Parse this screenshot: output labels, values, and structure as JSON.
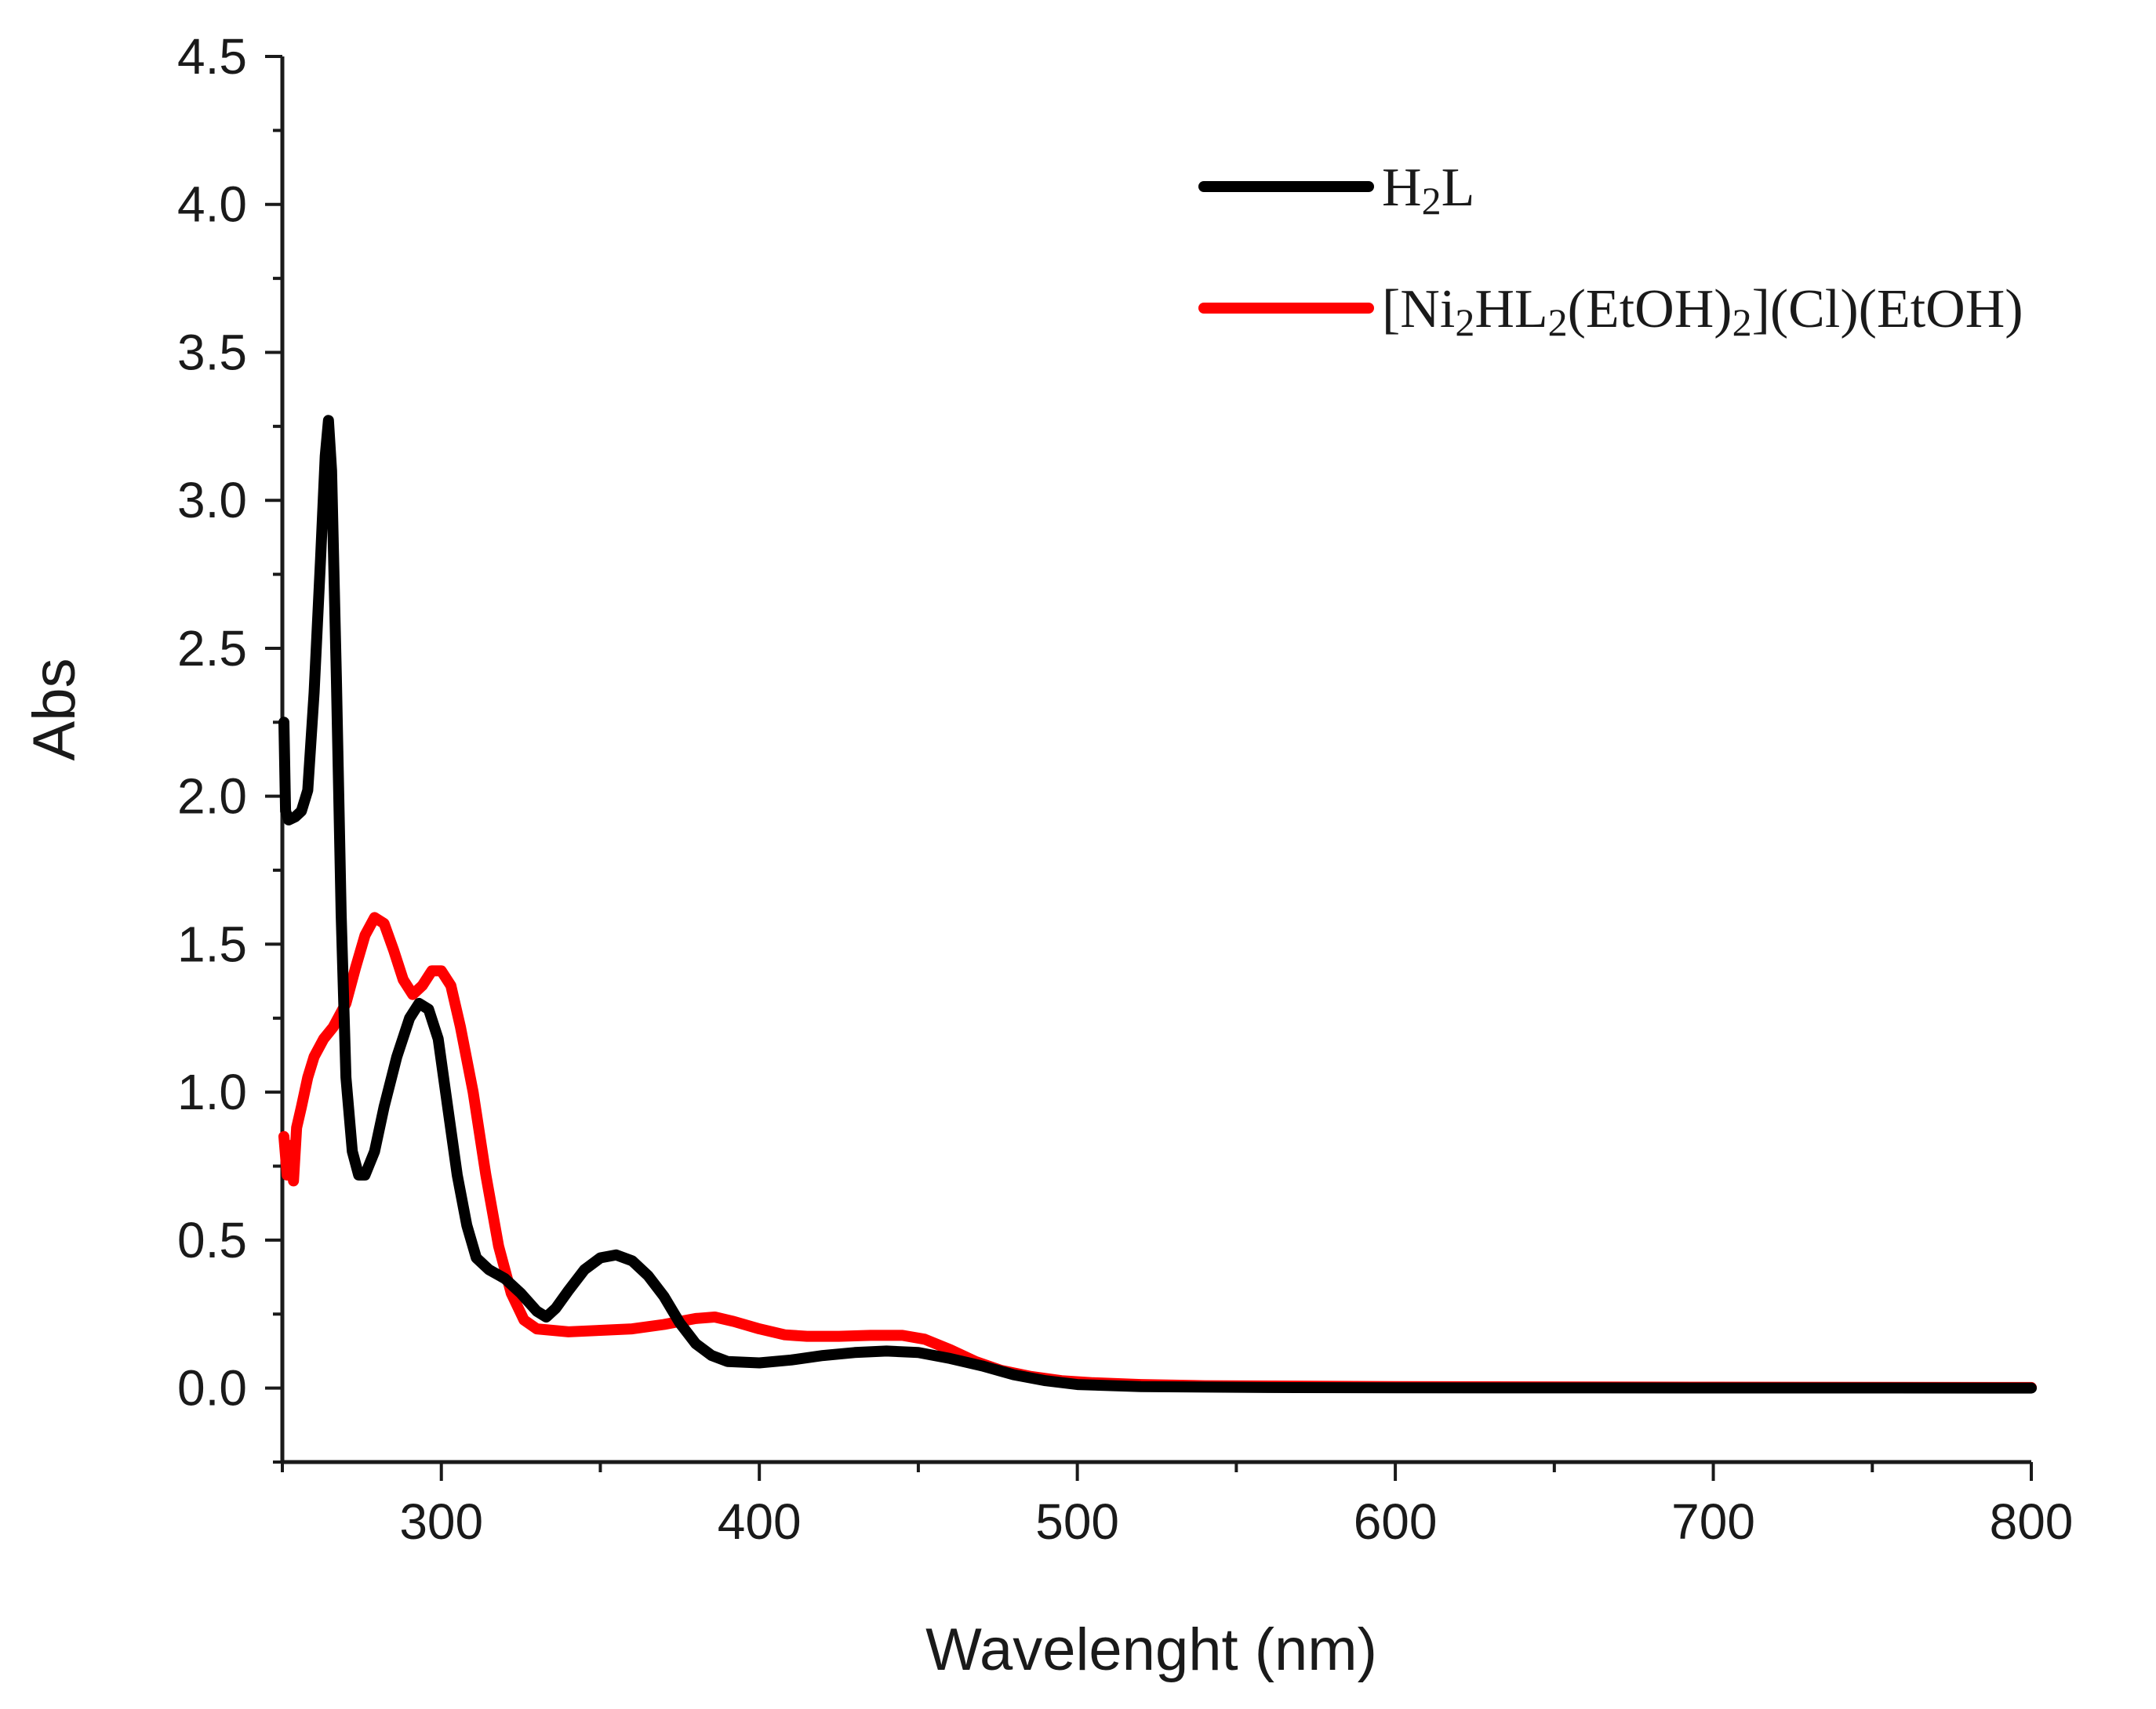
{
  "chart_data": {
    "type": "line",
    "title": "",
    "xlabel": "Wavelenght (nm)",
    "ylabel": "Abs",
    "xlim": [
      250,
      800
    ],
    "ylim": [
      -0.25,
      4.5
    ],
    "x_ticks": [
      300,
      400,
      500,
      600,
      700,
      800
    ],
    "x_ticks_text": [
      "300",
      "400",
      "500",
      "600",
      "700",
      "800"
    ],
    "x_minor_ticks": [
      250,
      350,
      450,
      550,
      650,
      750
    ],
    "y_ticks": [
      0.0,
      0.5,
      1.0,
      1.5,
      2.0,
      2.5,
      3.0,
      3.5,
      4.0,
      4.5
    ],
    "y_ticks_text": [
      "0.0",
      "0.5",
      "1.0",
      "1.5",
      "2.0",
      "2.5",
      "3.0",
      "3.5",
      "4.0",
      "4.5"
    ],
    "legend_position": "top-right",
    "series": [
      {
        "name": "H2L",
        "legend_parts": [
          {
            "text": "H",
            "sub": false
          },
          {
            "text": "2",
            "sub": true
          },
          {
            "text": "L",
            "sub": false
          }
        ],
        "color": "#000000",
        "points": [
          [
            250.5,
            2.25
          ],
          [
            251,
            1.95
          ],
          [
            252,
            1.92
          ],
          [
            254,
            1.93
          ],
          [
            256,
            1.95
          ],
          [
            258,
            2.02
          ],
          [
            260,
            2.35
          ],
          [
            262,
            2.8
          ],
          [
            263.5,
            3.15
          ],
          [
            264.5,
            3.27
          ],
          [
            265.5,
            3.1
          ],
          [
            267,
            2.4
          ],
          [
            268.5,
            1.6
          ],
          [
            270,
            1.05
          ],
          [
            272,
            0.8
          ],
          [
            274,
            0.72
          ],
          [
            276,
            0.72
          ],
          [
            279,
            0.8
          ],
          [
            282,
            0.95
          ],
          [
            286,
            1.12
          ],
          [
            290,
            1.25
          ],
          [
            293,
            1.3
          ],
          [
            296,
            1.28
          ],
          [
            299,
            1.18
          ],
          [
            302,
            0.95
          ],
          [
            305,
            0.72
          ],
          [
            308,
            0.55
          ],
          [
            311,
            0.44
          ],
          [
            315,
            0.4
          ],
          [
            320,
            0.37
          ],
          [
            325,
            0.32
          ],
          [
            330,
            0.26
          ],
          [
            333,
            0.24
          ],
          [
            336,
            0.27
          ],
          [
            340,
            0.33
          ],
          [
            345,
            0.4
          ],
          [
            350,
            0.44
          ],
          [
            355,
            0.45
          ],
          [
            360,
            0.43
          ],
          [
            365,
            0.38
          ],
          [
            370,
            0.31
          ],
          [
            375,
            0.22
          ],
          [
            380,
            0.15
          ],
          [
            385,
            0.11
          ],
          [
            390,
            0.09
          ],
          [
            400,
            0.085
          ],
          [
            410,
            0.095
          ],
          [
            420,
            0.11
          ],
          [
            430,
            0.12
          ],
          [
            440,
            0.125
          ],
          [
            450,
            0.12
          ],
          [
            460,
            0.1
          ],
          [
            470,
            0.075
          ],
          [
            480,
            0.045
          ],
          [
            490,
            0.025
          ],
          [
            500,
            0.012
          ],
          [
            520,
            0.005
          ],
          [
            560,
            0.002
          ],
          [
            600,
            0.001
          ],
          [
            800,
            0.0
          ]
        ]
      },
      {
        "name": "[Ni2HL2(EtOH)2](Cl)(EtOH)",
        "legend_parts": [
          {
            "text": "[Ni",
            "sub": false
          },
          {
            "text": "2",
            "sub": true
          },
          {
            "text": "HL",
            "sub": false
          },
          {
            "text": "2",
            "sub": true
          },
          {
            "text": "(EtOH)",
            "sub": false
          },
          {
            "text": "2",
            "sub": true
          },
          {
            "text": "](Cl)(EtOH)",
            "sub": false
          }
        ],
        "color": "#ff0000",
        "points": [
          [
            250.5,
            0.85
          ],
          [
            251.5,
            0.72
          ],
          [
            252.5,
            0.82
          ],
          [
            253.5,
            0.7
          ],
          [
            254.5,
            0.88
          ],
          [
            256,
            0.95
          ],
          [
            258,
            1.05
          ],
          [
            260,
            1.12
          ],
          [
            263,
            1.18
          ],
          [
            266,
            1.22
          ],
          [
            270,
            1.3
          ],
          [
            273,
            1.42
          ],
          [
            276,
            1.53
          ],
          [
            279,
            1.59
          ],
          [
            282,
            1.57
          ],
          [
            285,
            1.48
          ],
          [
            288,
            1.38
          ],
          [
            291,
            1.33
          ],
          [
            294,
            1.36
          ],
          [
            297,
            1.41
          ],
          [
            300,
            1.41
          ],
          [
            303,
            1.36
          ],
          [
            306,
            1.22
          ],
          [
            310,
            1.0
          ],
          [
            314,
            0.72
          ],
          [
            318,
            0.48
          ],
          [
            322,
            0.32
          ],
          [
            326,
            0.23
          ],
          [
            330,
            0.2
          ],
          [
            340,
            0.19
          ],
          [
            350,
            0.195
          ],
          [
            360,
            0.2
          ],
          [
            370,
            0.215
          ],
          [
            380,
            0.235
          ],
          [
            386,
            0.24
          ],
          [
            392,
            0.225
          ],
          [
            400,
            0.2
          ],
          [
            408,
            0.18
          ],
          [
            415,
            0.175
          ],
          [
            425,
            0.175
          ],
          [
            435,
            0.178
          ],
          [
            445,
            0.178
          ],
          [
            452,
            0.165
          ],
          [
            460,
            0.13
          ],
          [
            468,
            0.09
          ],
          [
            476,
            0.06
          ],
          [
            485,
            0.04
          ],
          [
            495,
            0.025
          ],
          [
            505,
            0.018
          ],
          [
            520,
            0.012
          ],
          [
            540,
            0.008
          ],
          [
            600,
            0.005
          ],
          [
            700,
            0.003
          ],
          [
            800,
            0.002
          ]
        ]
      }
    ]
  }
}
